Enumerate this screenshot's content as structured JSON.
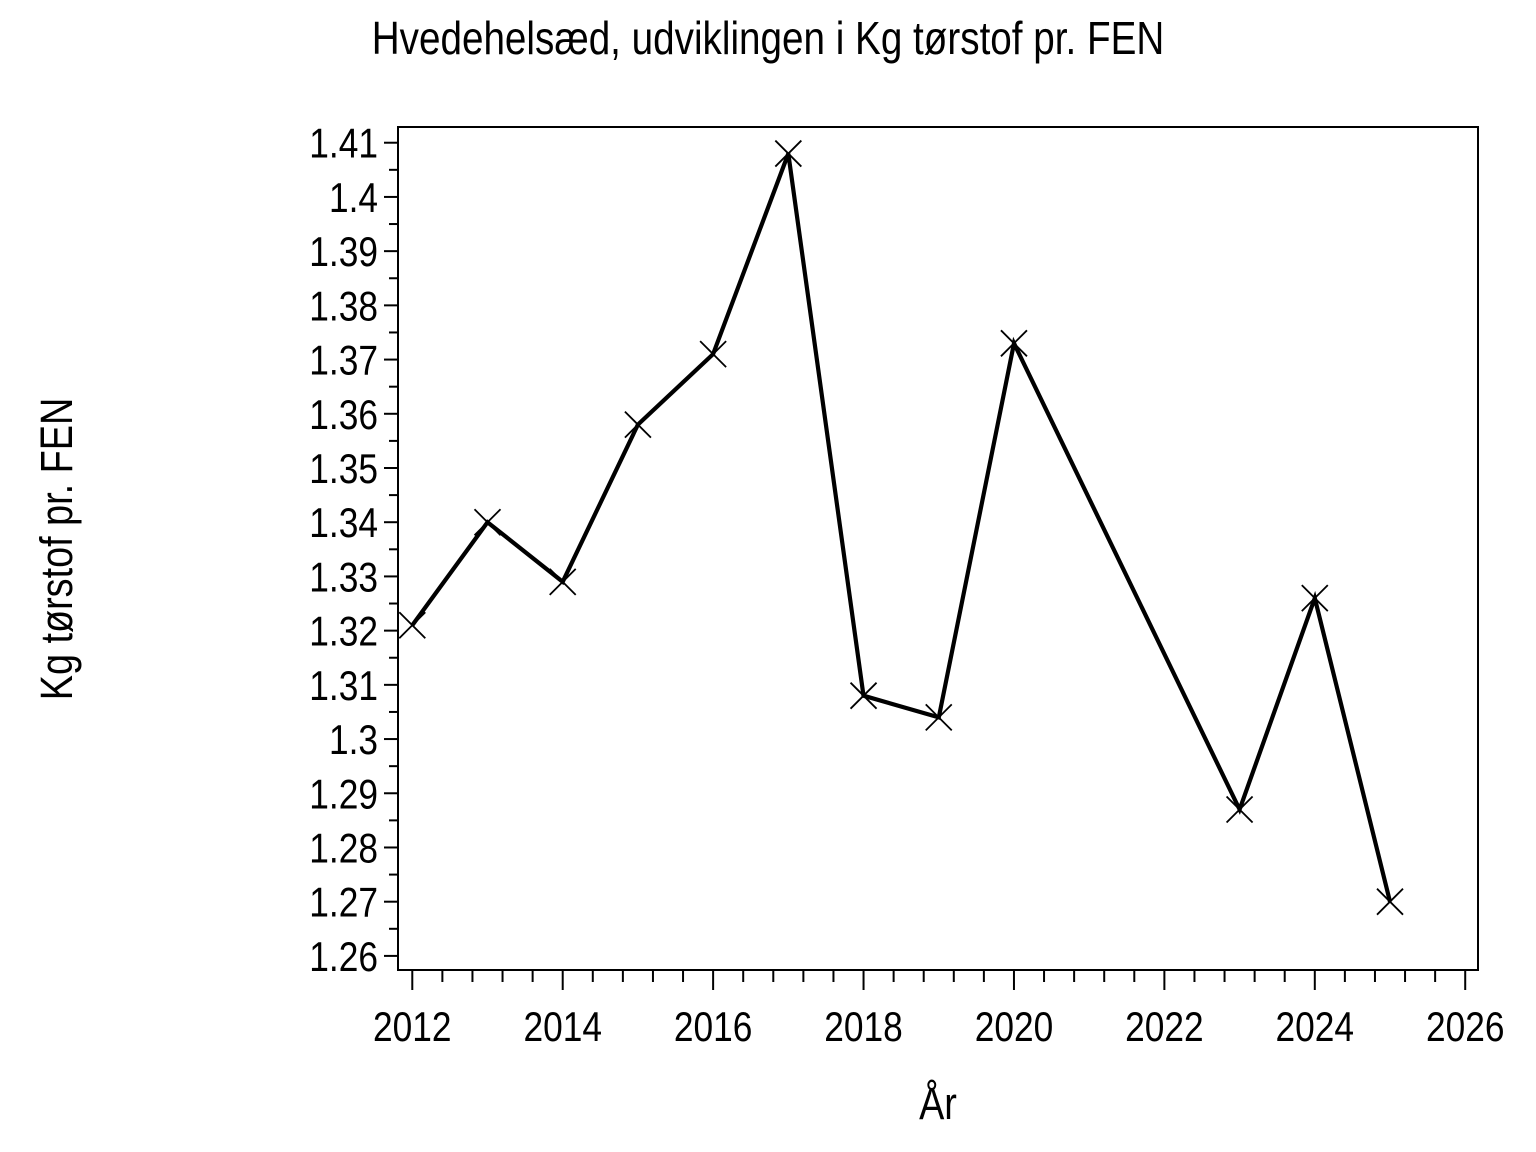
{
  "page": {
    "background": "#ffffff",
    "foreground": "#000000"
  },
  "chart_data": {
    "type": "line",
    "title": "Hvedehelsæd, udviklingen i Kg tørstof pr. FEN",
    "xlabel": "År",
    "ylabel": "Kg tørstof pr. FEN",
    "grid": false,
    "legend": null,
    "series": [
      {
        "name": "Kg tørstof pr. FEN",
        "marker": "x",
        "color": "#000000",
        "points": [
          {
            "x": 2012,
            "y": 1.321
          },
          {
            "x": 2013,
            "y": 1.34
          },
          {
            "x": 2014,
            "y": 1.329
          },
          {
            "x": 2015,
            "y": 1.358
          },
          {
            "x": 2016,
            "y": 1.371
          },
          {
            "x": 2017,
            "y": 1.408
          },
          {
            "x": 2018,
            "y": 1.308
          },
          {
            "x": 2019,
            "y": 1.304
          },
          {
            "x": 2020,
            "y": 1.373
          },
          {
            "x": 2023,
            "y": 1.287
          },
          {
            "x": 2024,
            "y": 1.326
          },
          {
            "x": 2025,
            "y": 1.27
          }
        ]
      }
    ],
    "x_axis": {
      "min": 2011.81,
      "max": 2026.17,
      "major_tick_start": 2012,
      "major_tick_step": 2,
      "major_tick_end": 2026,
      "minor_tick_step": 0.4,
      "tick_labels": [
        "2012",
        "2014",
        "2016",
        "2018",
        "2020",
        "2022",
        "2024",
        "2026"
      ]
    },
    "y_axis": {
      "min": 1.2574,
      "max": 1.4129,
      "major_tick_start": 1.26,
      "major_tick_step": 0.01,
      "major_tick_end": 1.41,
      "minor_tick_step": 0.005,
      "tick_labels": [
        "1.26",
        "1.27",
        "1.28",
        "1.29",
        "1.3",
        "1.31",
        "1.32",
        "1.33",
        "1.34",
        "1.35",
        "1.36",
        "1.37",
        "1.38",
        "1.39",
        "1.4",
        "1.41"
      ]
    }
  }
}
